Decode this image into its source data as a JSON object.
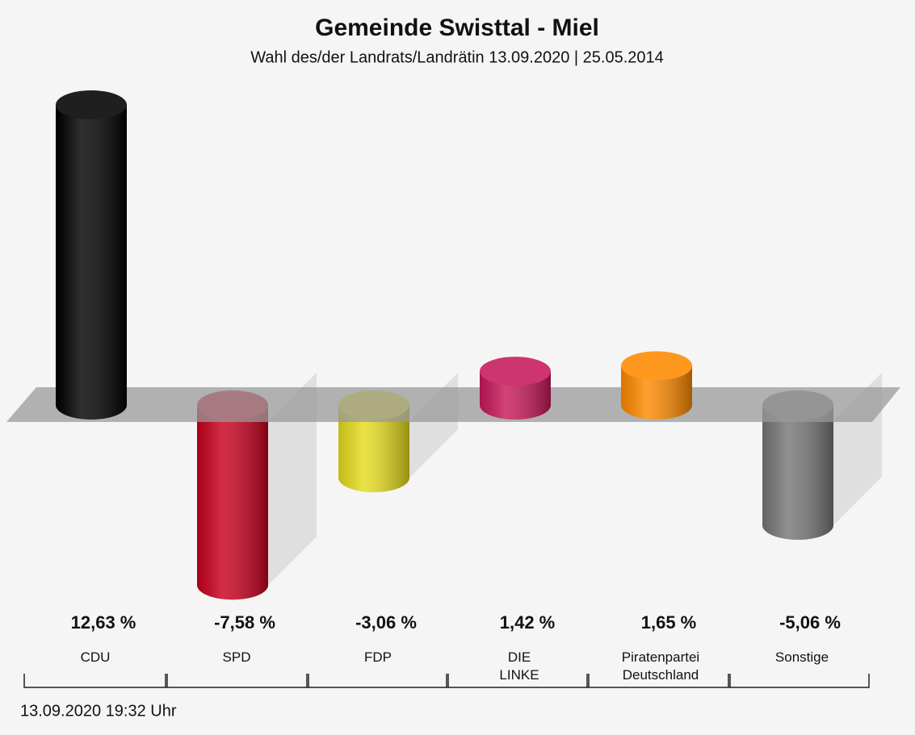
{
  "chart_data": {
    "type": "bar",
    "title": "Gemeinde Swisttal - Miel",
    "subtitle": "Wahl des/der Landrats/Landrätin 13.09.2020  | 25.05.2014",
    "categories": [
      "CDU",
      "SPD",
      "FDP",
      "DIE\nLINKE",
      "Piratenpartei\nDeutschland",
      "Sonstige"
    ],
    "values": [
      12.63,
      -7.58,
      -3.06,
      1.42,
      1.65,
      -5.06
    ],
    "value_labels": [
      "12,63 %",
      "-7,58 %",
      "-3,06 %",
      "1,42 %",
      "1,65 %",
      "-5,06 %"
    ],
    "colors": [
      "#000000",
      "#c8001e",
      "#e6dc1e",
      "#c8185a",
      "#ff8a00",
      "#777777"
    ],
    "footer": "13.09.2020 19:32 Uhr"
  }
}
